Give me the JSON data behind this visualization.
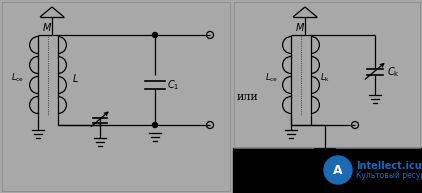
{
  "bg_color": "#a8a8a8",
  "line_color": "#000000",
  "blue": "#1a6ab5",
  "figsize": [
    4.22,
    1.93
  ],
  "dpi": 100,
  "ili_text": "или",
  "logo_text": "Intellect.icu",
  "logo_sub": "Культовый ресурс"
}
